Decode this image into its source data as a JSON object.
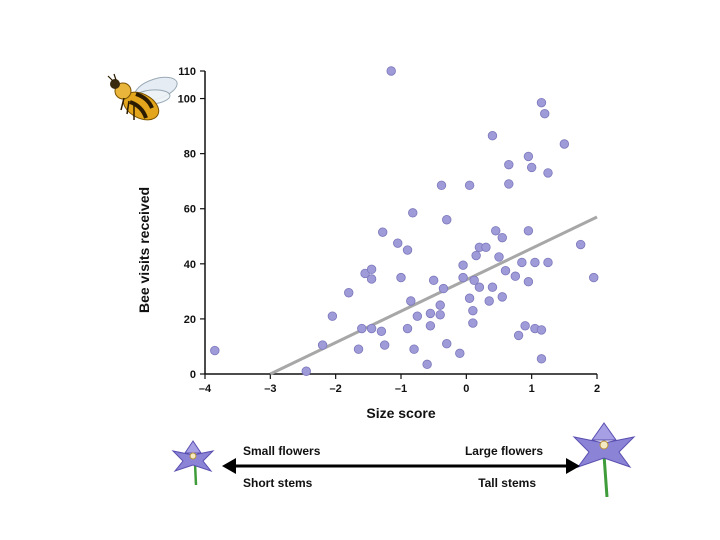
{
  "chart_data": {
    "type": "scatter",
    "xlabel": "Size score",
    "ylabel": "Bee visits received",
    "xlim": [
      -4,
      2
    ],
    "ylim": [
      0,
      110
    ],
    "xticks": [
      -4,
      -3,
      -2,
      -1,
      0,
      1,
      2
    ],
    "yticks": [
      0,
      20,
      40,
      60,
      80,
      100,
      110
    ],
    "xtick_labels": [
      "–4",
      "–3",
      "–2",
      "–1",
      "0",
      "1",
      "2"
    ],
    "ytick_labels": [
      "0",
      "20",
      "40",
      "60",
      "80",
      "100",
      "110"
    ],
    "grid": false,
    "points": [
      {
        "x": -3.85,
        "y": 8.5
      },
      {
        "x": -2.45,
        "y": 1
      },
      {
        "x": -2.2,
        "y": 10.5
      },
      {
        "x": -2.05,
        "y": 21
      },
      {
        "x": -1.8,
        "y": 29.5
      },
      {
        "x": -1.65,
        "y": 9
      },
      {
        "x": -1.6,
        "y": 16.5
      },
      {
        "x": -1.55,
        "y": 36.5
      },
      {
        "x": -1.45,
        "y": 38
      },
      {
        "x": -1.45,
        "y": 34.5
      },
      {
        "x": -1.45,
        "y": 16.5
      },
      {
        "x": -1.3,
        "y": 15.5
      },
      {
        "x": -1.28,
        "y": 51.5
      },
      {
        "x": -1.25,
        "y": 10.5
      },
      {
        "x": -1.15,
        "y": 110
      },
      {
        "x": -1.05,
        "y": 47.5
      },
      {
        "x": -1.0,
        "y": 35
      },
      {
        "x": -0.9,
        "y": 16.5
      },
      {
        "x": -0.9,
        "y": 45
      },
      {
        "x": -0.85,
        "y": 26.5
      },
      {
        "x": -0.82,
        "y": 58.5
      },
      {
        "x": -0.8,
        "y": 9
      },
      {
        "x": -0.75,
        "y": 21
      },
      {
        "x": -0.6,
        "y": 3.5
      },
      {
        "x": -0.55,
        "y": 22
      },
      {
        "x": -0.55,
        "y": 17.5
      },
      {
        "x": -0.5,
        "y": 34
      },
      {
        "x": -0.4,
        "y": 21.5
      },
      {
        "x": -0.4,
        "y": 25
      },
      {
        "x": -0.38,
        "y": 68.5
      },
      {
        "x": -0.35,
        "y": 31
      },
      {
        "x": -0.3,
        "y": 56
      },
      {
        "x": -0.3,
        "y": 11
      },
      {
        "x": -0.1,
        "y": 7.5
      },
      {
        "x": -0.05,
        "y": 35
      },
      {
        "x": -0.05,
        "y": 39.5
      },
      {
        "x": 0.05,
        "y": 68.5
      },
      {
        "x": 0.05,
        "y": 27.5
      },
      {
        "x": 0.1,
        "y": 23
      },
      {
        "x": 0.1,
        "y": 18.5
      },
      {
        "x": 0.12,
        "y": 34
      },
      {
        "x": 0.15,
        "y": 43
      },
      {
        "x": 0.2,
        "y": 46
      },
      {
        "x": 0.2,
        "y": 31.5
      },
      {
        "x": 0.3,
        "y": 46
      },
      {
        "x": 0.35,
        "y": 26.5
      },
      {
        "x": 0.4,
        "y": 86.5
      },
      {
        "x": 0.4,
        "y": 31.5
      },
      {
        "x": 0.45,
        "y": 52
      },
      {
        "x": 0.5,
        "y": 42.5
      },
      {
        "x": 0.55,
        "y": 49.5
      },
      {
        "x": 0.55,
        "y": 28
      },
      {
        "x": 0.6,
        "y": 37.5
      },
      {
        "x": 0.65,
        "y": 69
      },
      {
        "x": 0.65,
        "y": 76
      },
      {
        "x": 0.75,
        "y": 35.5
      },
      {
        "x": 0.8,
        "y": 14
      },
      {
        "x": 0.85,
        "y": 40.5
      },
      {
        "x": 0.9,
        "y": 17.5
      },
      {
        "x": 0.95,
        "y": 79
      },
      {
        "x": 0.95,
        "y": 52
      },
      {
        "x": 0.95,
        "y": 33.5
      },
      {
        "x": 1.0,
        "y": 75
      },
      {
        "x": 1.05,
        "y": 16.5
      },
      {
        "x": 1.05,
        "y": 40.5
      },
      {
        "x": 1.15,
        "y": 98.5
      },
      {
        "x": 1.15,
        "y": 16
      },
      {
        "x": 1.15,
        "y": 5.5
      },
      {
        "x": 1.2,
        "y": 94.5
      },
      {
        "x": 1.25,
        "y": 73
      },
      {
        "x": 1.25,
        "y": 40.5
      },
      {
        "x": 1.5,
        "y": 83.5
      },
      {
        "x": 1.75,
        "y": 47
      },
      {
        "x": 1.95,
        "y": 35
      }
    ],
    "trendline": {
      "x1": -3.0,
      "y1": 0,
      "x2": 2.0,
      "y2": 57
    },
    "colors": {
      "point_fill": "#9e9bd8",
      "point_edge": "#7c78bc",
      "trendline": "#a7a7a7",
      "axis": "#111111"
    }
  },
  "captions": {
    "small_flowers": "Small flowers",
    "short_stems": "Short stems",
    "large_flowers": "Large flowers",
    "tall_stems": "Tall stems"
  },
  "icons": {
    "bee": "bee-icon",
    "small_flower": "small-flower-icon",
    "large_flower": "large-flower-icon",
    "arrow": "double-headed-arrow"
  }
}
